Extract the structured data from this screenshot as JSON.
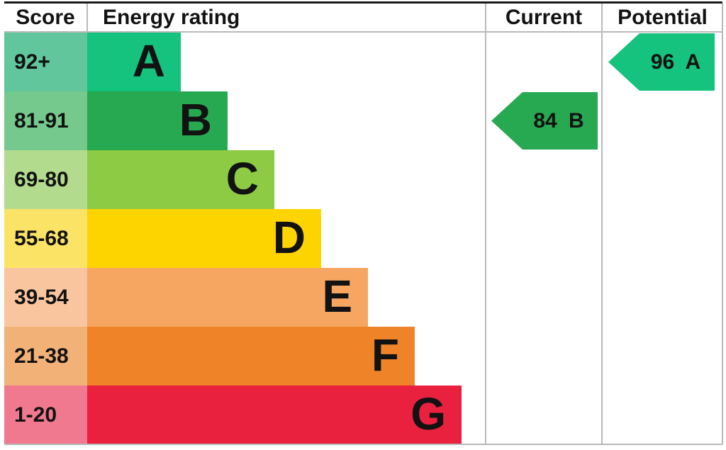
{
  "header": {
    "score": "Score",
    "rating": "Energy rating",
    "current": "Current",
    "potential": "Potential"
  },
  "chart_data": {
    "type": "bar",
    "title": "Energy efficiency rating (EPC) chart",
    "categories": [
      "A",
      "B",
      "C",
      "D",
      "E",
      "F",
      "G"
    ],
    "bands": [
      {
        "letter": "A",
        "score_range": "92+",
        "color": "#15c27e",
        "tint": "#61c69b"
      },
      {
        "letter": "B",
        "score_range": "81-91",
        "color": "#27a952",
        "tint": "#75c98c"
      },
      {
        "letter": "C",
        "score_range": "69-80",
        "color": "#8dcb45",
        "tint": "#b3db8d"
      },
      {
        "letter": "D",
        "score_range": "55-68",
        "color": "#fed400",
        "tint": "#fbe366"
      },
      {
        "letter": "E",
        "score_range": "39-54",
        "color": "#f6a661",
        "tint": "#f9c59f"
      },
      {
        "letter": "F",
        "score_range": "21-38",
        "color": "#ee8327",
        "tint": "#f2b277"
      },
      {
        "letter": "G",
        "score_range": "1-20",
        "color": "#e9203e",
        "tint": "#f0798f"
      }
    ],
    "markers": {
      "current": {
        "value": 84,
        "band": "B",
        "label": "84 B",
        "band_index": 1,
        "color": "#27a952"
      },
      "potential": {
        "value": 96,
        "band": "A",
        "label": "96 A",
        "band_index": 0,
        "color": "#15c27e"
      }
    },
    "layout": {
      "columns": [
        "Score",
        "Energy rating",
        "Current",
        "Potential"
      ],
      "legend": "none",
      "grid": "table-lines"
    }
  },
  "colors": {
    "grid_line": "#b9b9b9",
    "top_border": "#1a1a1a",
    "text": "#121212",
    "background": "#ffffff"
  }
}
